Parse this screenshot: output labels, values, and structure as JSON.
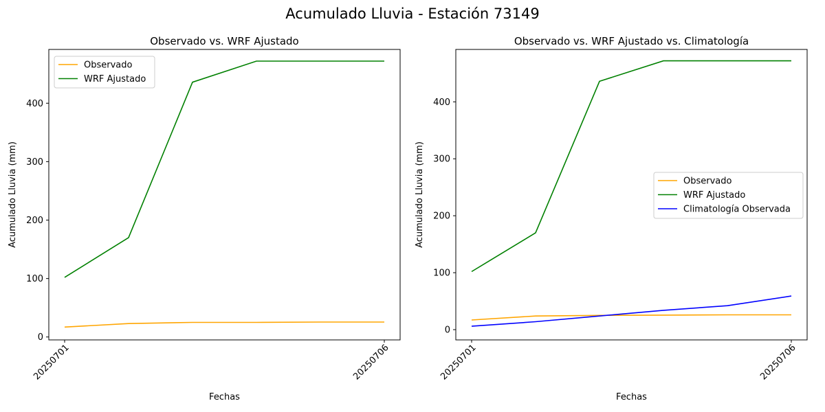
{
  "figure": {
    "suptitle": "Acumulado Lluvia - Estación 73149"
  },
  "colors": {
    "observado": "#ffa500",
    "wrf_ajustado": "#008000",
    "climatologia": "#0000ff"
  },
  "chart_data": [
    {
      "type": "line",
      "title": "Observado vs. WRF Ajustado",
      "xlabel": "Fechas",
      "ylabel": "Acumulado Lluvia (mm)",
      "x": [
        "20250701",
        "20250702",
        "20250703",
        "20250704",
        "20250705",
        "20250706"
      ],
      "x_tick_labels": [
        "20250701",
        "20250706"
      ],
      "y_ticks": [
        0,
        100,
        200,
        300,
        400
      ],
      "ylim": [
        -5,
        492
      ],
      "grid": false,
      "legend_position": "upper left",
      "series": [
        {
          "name": "Observado",
          "color": "#ffa500",
          "values": [
            17,
            23,
            25,
            25,
            25.5,
            25.5
          ]
        },
        {
          "name": "WRF Ajustado",
          "color": "#008000",
          "values": [
            102,
            170,
            436,
            472,
            472,
            472
          ]
        }
      ]
    },
    {
      "type": "line",
      "title": "Observado vs. WRF Ajustado vs. Climatología",
      "xlabel": "Fechas",
      "ylabel": "Acumulado Lluvia (mm)",
      "x": [
        "20250701",
        "20250702",
        "20250703",
        "20250704",
        "20250705",
        "20250706"
      ],
      "x_tick_labels": [
        "20250701",
        "20250706"
      ],
      "y_ticks": [
        0,
        100,
        200,
        300,
        400
      ],
      "ylim": [
        -18,
        492
      ],
      "grid": false,
      "legend_position": "center right",
      "series": [
        {
          "name": "Observado",
          "color": "#ffa500",
          "values": [
            17,
            24,
            25,
            25.5,
            26,
            26
          ]
        },
        {
          "name": "WRF Ajustado",
          "color": "#008000",
          "values": [
            102,
            170,
            436,
            472,
            472,
            472
          ]
        },
        {
          "name": "Climatología Observada",
          "color": "#0000ff",
          "values": [
            6,
            14,
            24,
            34,
            42,
            59
          ]
        }
      ]
    }
  ]
}
